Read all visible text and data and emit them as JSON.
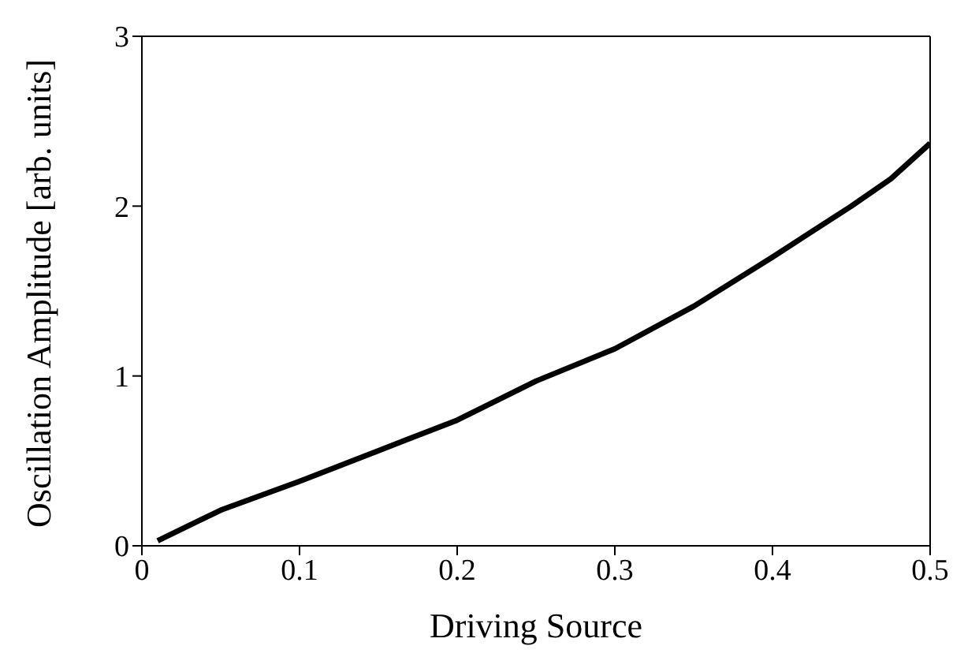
{
  "chart_data": {
    "type": "line",
    "xlabel": "Driving Source",
    "ylabel": "Oscillation Amplitude [arb. units]",
    "x": [
      0.01,
      0.05,
      0.1,
      0.15,
      0.2,
      0.25,
      0.3,
      0.35,
      0.4,
      0.45,
      0.475,
      0.5
    ],
    "series": [
      {
        "color": "#000000",
        "values": [
          0.03,
          0.21,
          0.38,
          0.56,
          0.74,
          0.97,
          1.16,
          1.41,
          1.7,
          2.0,
          2.16,
          2.37
        ]
      }
    ],
    "xlim": [
      0,
      0.5
    ],
    "xticks": [
      0,
      0.1,
      0.2,
      0.3,
      0.4,
      0.5
    ],
    "ylim": [
      0,
      3
    ],
    "yticks": [
      0,
      1,
      2,
      3
    ],
    "grid": false,
    "legend": false,
    "marker": "none",
    "line_style": "solid"
  }
}
